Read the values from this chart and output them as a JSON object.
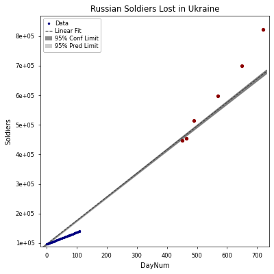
{
  "title": "Russian Soldiers Lost in Ukraine",
  "xlabel": "DayNum",
  "ylabel": "Soldiers",
  "xlim": [
    -20,
    740
  ],
  "ylim": [
    88000,
    870000
  ],
  "yticks": [
    100000,
    200000,
    300000,
    400000,
    500000,
    600000,
    700000,
    800000
  ],
  "ytick_labels": [
    "1e+05",
    "2e+05",
    "3e+05",
    "4e+05",
    "5e+05",
    "6e+05",
    "7e+05",
    "8e+05"
  ],
  "xticks": [
    0,
    100,
    200,
    300,
    400,
    500,
    600,
    700
  ],
  "intercept": 96000,
  "slope": 800,
  "fit_x_start": -15,
  "fit_x_end": 730,
  "data_blue_x": [
    1,
    3,
    5,
    7,
    9,
    11,
    13,
    15,
    17,
    19,
    21,
    23,
    25,
    27,
    29,
    31,
    33,
    35,
    37,
    39,
    41,
    43,
    45,
    47,
    49,
    51,
    53,
    55,
    57,
    59,
    61,
    63,
    65,
    67,
    69,
    71,
    73,
    75,
    77,
    79,
    81,
    83,
    85,
    87,
    89,
    91,
    93,
    95,
    97,
    99,
    101,
    103,
    105,
    107,
    109,
    111
  ],
  "data_blue_y": [
    96800,
    97600,
    98400,
    99200,
    100000,
    100800,
    101600,
    102400,
    103200,
    104000,
    104800,
    105600,
    106400,
    107200,
    108000,
    108800,
    109600,
    110400,
    111200,
    112000,
    112800,
    113600,
    114400,
    115200,
    116000,
    116800,
    117600,
    118400,
    119200,
    120000,
    120800,
    121600,
    122400,
    123200,
    124000,
    124800,
    125600,
    126400,
    127200,
    128000,
    128800,
    129600,
    130400,
    131200,
    132000,
    132800,
    133600,
    134400,
    135200,
    136000,
    136800,
    137600,
    138400,
    139200,
    140000,
    140800
  ],
  "data_red_x": [
    450,
    465,
    490,
    570,
    650,
    720
  ],
  "data_red_y": [
    448000,
    455000,
    515000,
    597000,
    700000,
    823000
  ],
  "blue_color": "#000080",
  "red_color": "#8B0000",
  "fit_color": "#333333",
  "conf_color": "#777777",
  "pred_color": "#cccccc",
  "legend_fontsize": 6,
  "title_fontsize": 8.5,
  "axis_label_fontsize": 7,
  "tick_fontsize": 6
}
